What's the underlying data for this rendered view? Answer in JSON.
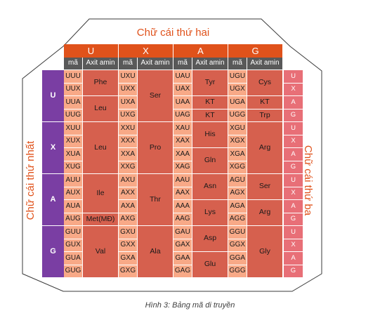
{
  "titles": {
    "top": "Chữ cái thứ hai",
    "left": "Chữ cái thứ nhất",
    "right": "Chữ cái thứ ba"
  },
  "bases": [
    "U",
    "X",
    "A",
    "G"
  ],
  "column_headers": {
    "code": "mã",
    "amino": "Axit amin"
  },
  "caption": "Hình 3: Bảng mã di truyền",
  "blocks": [
    [
      {
        "codons": [
          "UUU",
          "UUX",
          "UUA",
          "UUG"
        ],
        "aminos": [
          {
            "name": "Phe",
            "rows": 2
          },
          {
            "name": "Leu",
            "rows": 2
          }
        ]
      },
      {
        "codons": [
          "UXU",
          "UXX",
          "UXA",
          "UXG"
        ],
        "aminos": [
          {
            "name": "Ser",
            "rows": 4
          }
        ]
      },
      {
        "codons": [
          "UAU",
          "UAX",
          "UAA",
          "UAG"
        ],
        "aminos": [
          {
            "name": "Tyr",
            "rows": 2
          },
          {
            "name": "KT",
            "rows": 1
          },
          {
            "name": "KT",
            "rows": 1
          }
        ]
      },
      {
        "codons": [
          "UGU",
          "UGX",
          "UGA",
          "UGG"
        ],
        "aminos": [
          {
            "name": "Cys",
            "rows": 2
          },
          {
            "name": "KT",
            "rows": 1
          },
          {
            "name": "Trp",
            "rows": 1
          }
        ]
      }
    ],
    [
      {
        "codons": [
          "XUU",
          "XUX",
          "XUA",
          "XUG"
        ],
        "aminos": [
          {
            "name": "Leu",
            "rows": 4
          }
        ]
      },
      {
        "codons": [
          "XXU",
          "XXX",
          "XXA",
          "XXG"
        ],
        "aminos": [
          {
            "name": "Pro",
            "rows": 4
          }
        ]
      },
      {
        "codons": [
          "XAU",
          "XAX",
          "XAA",
          "XAG"
        ],
        "aminos": [
          {
            "name": "His",
            "rows": 2
          },
          {
            "name": "Gln",
            "rows": 2
          }
        ]
      },
      {
        "codons": [
          "XGU",
          "XGX",
          "XGA",
          "XGG"
        ],
        "aminos": [
          {
            "name": "Arg",
            "rows": 4
          }
        ]
      }
    ],
    [
      {
        "codons": [
          "AUU",
          "AUX",
          "AUA",
          "AUG"
        ],
        "aminos": [
          {
            "name": "Ile",
            "rows": 3
          },
          {
            "name": "Met(MĐ)",
            "rows": 1
          }
        ]
      },
      {
        "codons": [
          "AXU",
          "AXX",
          "AXA",
          "AXG"
        ],
        "aminos": [
          {
            "name": "Thr",
            "rows": 4
          }
        ]
      },
      {
        "codons": [
          "AAU",
          "AAX",
          "AAA",
          "AAG"
        ],
        "aminos": [
          {
            "name": "Asn",
            "rows": 2
          },
          {
            "name": "Lys",
            "rows": 2
          }
        ]
      },
      {
        "codons": [
          "AGU",
          "AGX",
          "AGA",
          "AGG"
        ],
        "aminos": [
          {
            "name": "Ser",
            "rows": 2
          },
          {
            "name": "Arg",
            "rows": 2
          }
        ]
      }
    ],
    [
      {
        "codons": [
          "GUU",
          "GUX",
          "GUA",
          "GUG"
        ],
        "aminos": [
          {
            "name": "Val",
            "rows": 4
          }
        ]
      },
      {
        "codons": [
          "GXU",
          "GXX",
          "GXA",
          "GXG"
        ],
        "aminos": [
          {
            "name": "Ala",
            "rows": 4
          }
        ]
      },
      {
        "codons": [
          "GAU",
          "GAX",
          "GAA",
          "GAG"
        ],
        "aminos": [
          {
            "name": "Asp",
            "rows": 2
          },
          {
            "name": "Glu",
            "rows": 2
          }
        ]
      },
      {
        "codons": [
          "GGU",
          "GGX",
          "GGA",
          "GGG"
        ],
        "aminos": [
          {
            "name": "Gly",
            "rows": 4
          }
        ]
      }
    ]
  ],
  "colors": {
    "header_orange": "#e0521b",
    "subheader_gray": "#595959",
    "first_letter_purple": "#7a3ea3",
    "codon_peach": "#f8a987",
    "amino_red": "#d6604e",
    "third_letter_pink": "#e86f77",
    "title_orange": "#e0521b"
  }
}
